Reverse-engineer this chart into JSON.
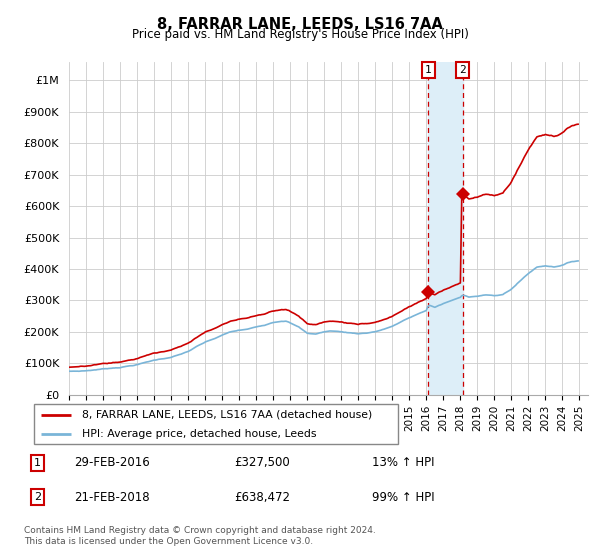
{
  "title": "8, FARRAR LANE, LEEDS, LS16 7AA",
  "subtitle": "Price paid vs. HM Land Registry's House Price Index (HPI)",
  "ylabel_ticks": [
    "£0",
    "£100K",
    "£200K",
    "£300K",
    "£400K",
    "£500K",
    "£600K",
    "£700K",
    "£800K",
    "£900K",
    "£1M"
  ],
  "ytick_values": [
    0,
    100000,
    200000,
    300000,
    400000,
    500000,
    600000,
    700000,
    800000,
    900000,
    1000000
  ],
  "ylim": [
    0,
    1060000
  ],
  "xlim_start": 1995.0,
  "xlim_end": 2025.5,
  "hpi_color": "#7ab5d8",
  "sale_color": "#cc0000",
  "annotation_box_color": "#cc0000",
  "shading_color": "#ddeef8",
  "legend_label_sale": "8, FARRAR LANE, LEEDS, LS16 7AA (detached house)",
  "legend_label_hpi": "HPI: Average price, detached house, Leeds",
  "annotation1_label": "1",
  "annotation1_date": "29-FEB-2016",
  "annotation1_price": "£327,500",
  "annotation1_hpi": "13% ↑ HPI",
  "annotation2_label": "2",
  "annotation2_date": "21-FEB-2018",
  "annotation2_price": "£638,472",
  "annotation2_hpi": "99% ↑ HPI",
  "footer": "Contains HM Land Registry data © Crown copyright and database right 2024.\nThis data is licensed under the Open Government Licence v3.0.",
  "sale1_x": 2016.125,
  "sale1_y": 327500,
  "sale2_x": 2018.125,
  "sale2_y": 638472
}
